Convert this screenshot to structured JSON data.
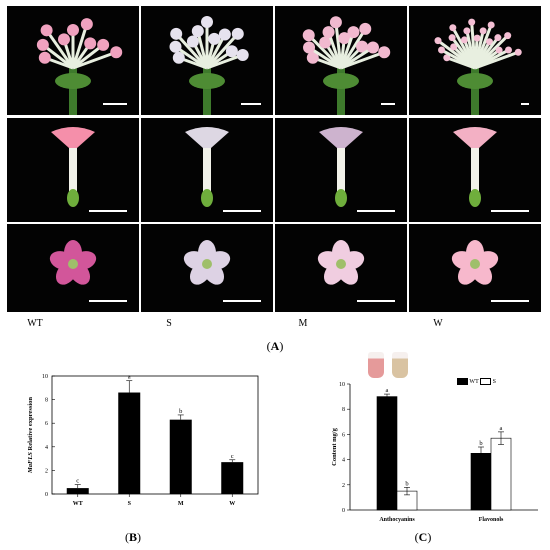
{
  "panel_labels": {
    "a": "A",
    "b": "B",
    "c": "C"
  },
  "genotypes": [
    "WT",
    "S",
    "M",
    "W"
  ],
  "photo_panels": {
    "rows": [
      {
        "name": "inflorescence",
        "flower_colors": [
          "#f0a2bf",
          "#e6e2ee",
          "#f1b9cf",
          "#f4bfd4"
        ]
      },
      {
        "name": "flower-side",
        "flower_colors": [
          "#f58faa",
          "#ddd7e3",
          "#cdb3ce",
          "#f3b0c4"
        ]
      },
      {
        "name": "flower-face",
        "flower_colors": [
          "#d2569a",
          "#ddd2e4",
          "#f0cde0",
          "#f7b8cc"
        ]
      }
    ]
  },
  "chart_data": [
    {
      "type": "bar",
      "panel": "B",
      "categories": [
        "WT",
        "S",
        "M",
        "W"
      ],
      "values": [
        0.5,
        8.6,
        6.3,
        2.7
      ],
      "errors": [
        0.3,
        1.0,
        0.4,
        0.2
      ],
      "significance": [
        "c",
        "a",
        "b",
        "c"
      ],
      "ylabel_italic": "MaFLS",
      "ylabel_rest": " Relative expression",
      "ylim": [
        0,
        10
      ],
      "yticks": [
        0,
        2,
        4,
        6,
        8,
        10
      ],
      "bar_color": "#000000"
    },
    {
      "type": "bar",
      "panel": "C",
      "categories": [
        "Anthocyanins",
        "Flavonols"
      ],
      "series": [
        {
          "name": "WT",
          "values": [
            9.0,
            4.5
          ],
          "errors": [
            0.2,
            0.5
          ],
          "significance": [
            "a",
            "b"
          ],
          "color": "#000000"
        },
        {
          "name": "S",
          "values": [
            1.5,
            5.7
          ],
          "errors": [
            0.3,
            0.5
          ],
          "significance": [
            "b",
            "a"
          ],
          "color": "#ffffff"
        }
      ],
      "ylabel": "Content mg/g",
      "ylim": [
        0,
        10
      ],
      "yticks": [
        0,
        2,
        4,
        6,
        8,
        10
      ],
      "legend_position": "top-right",
      "inset_colors": [
        "#e59a9a",
        "#d9c3a2"
      ]
    }
  ]
}
